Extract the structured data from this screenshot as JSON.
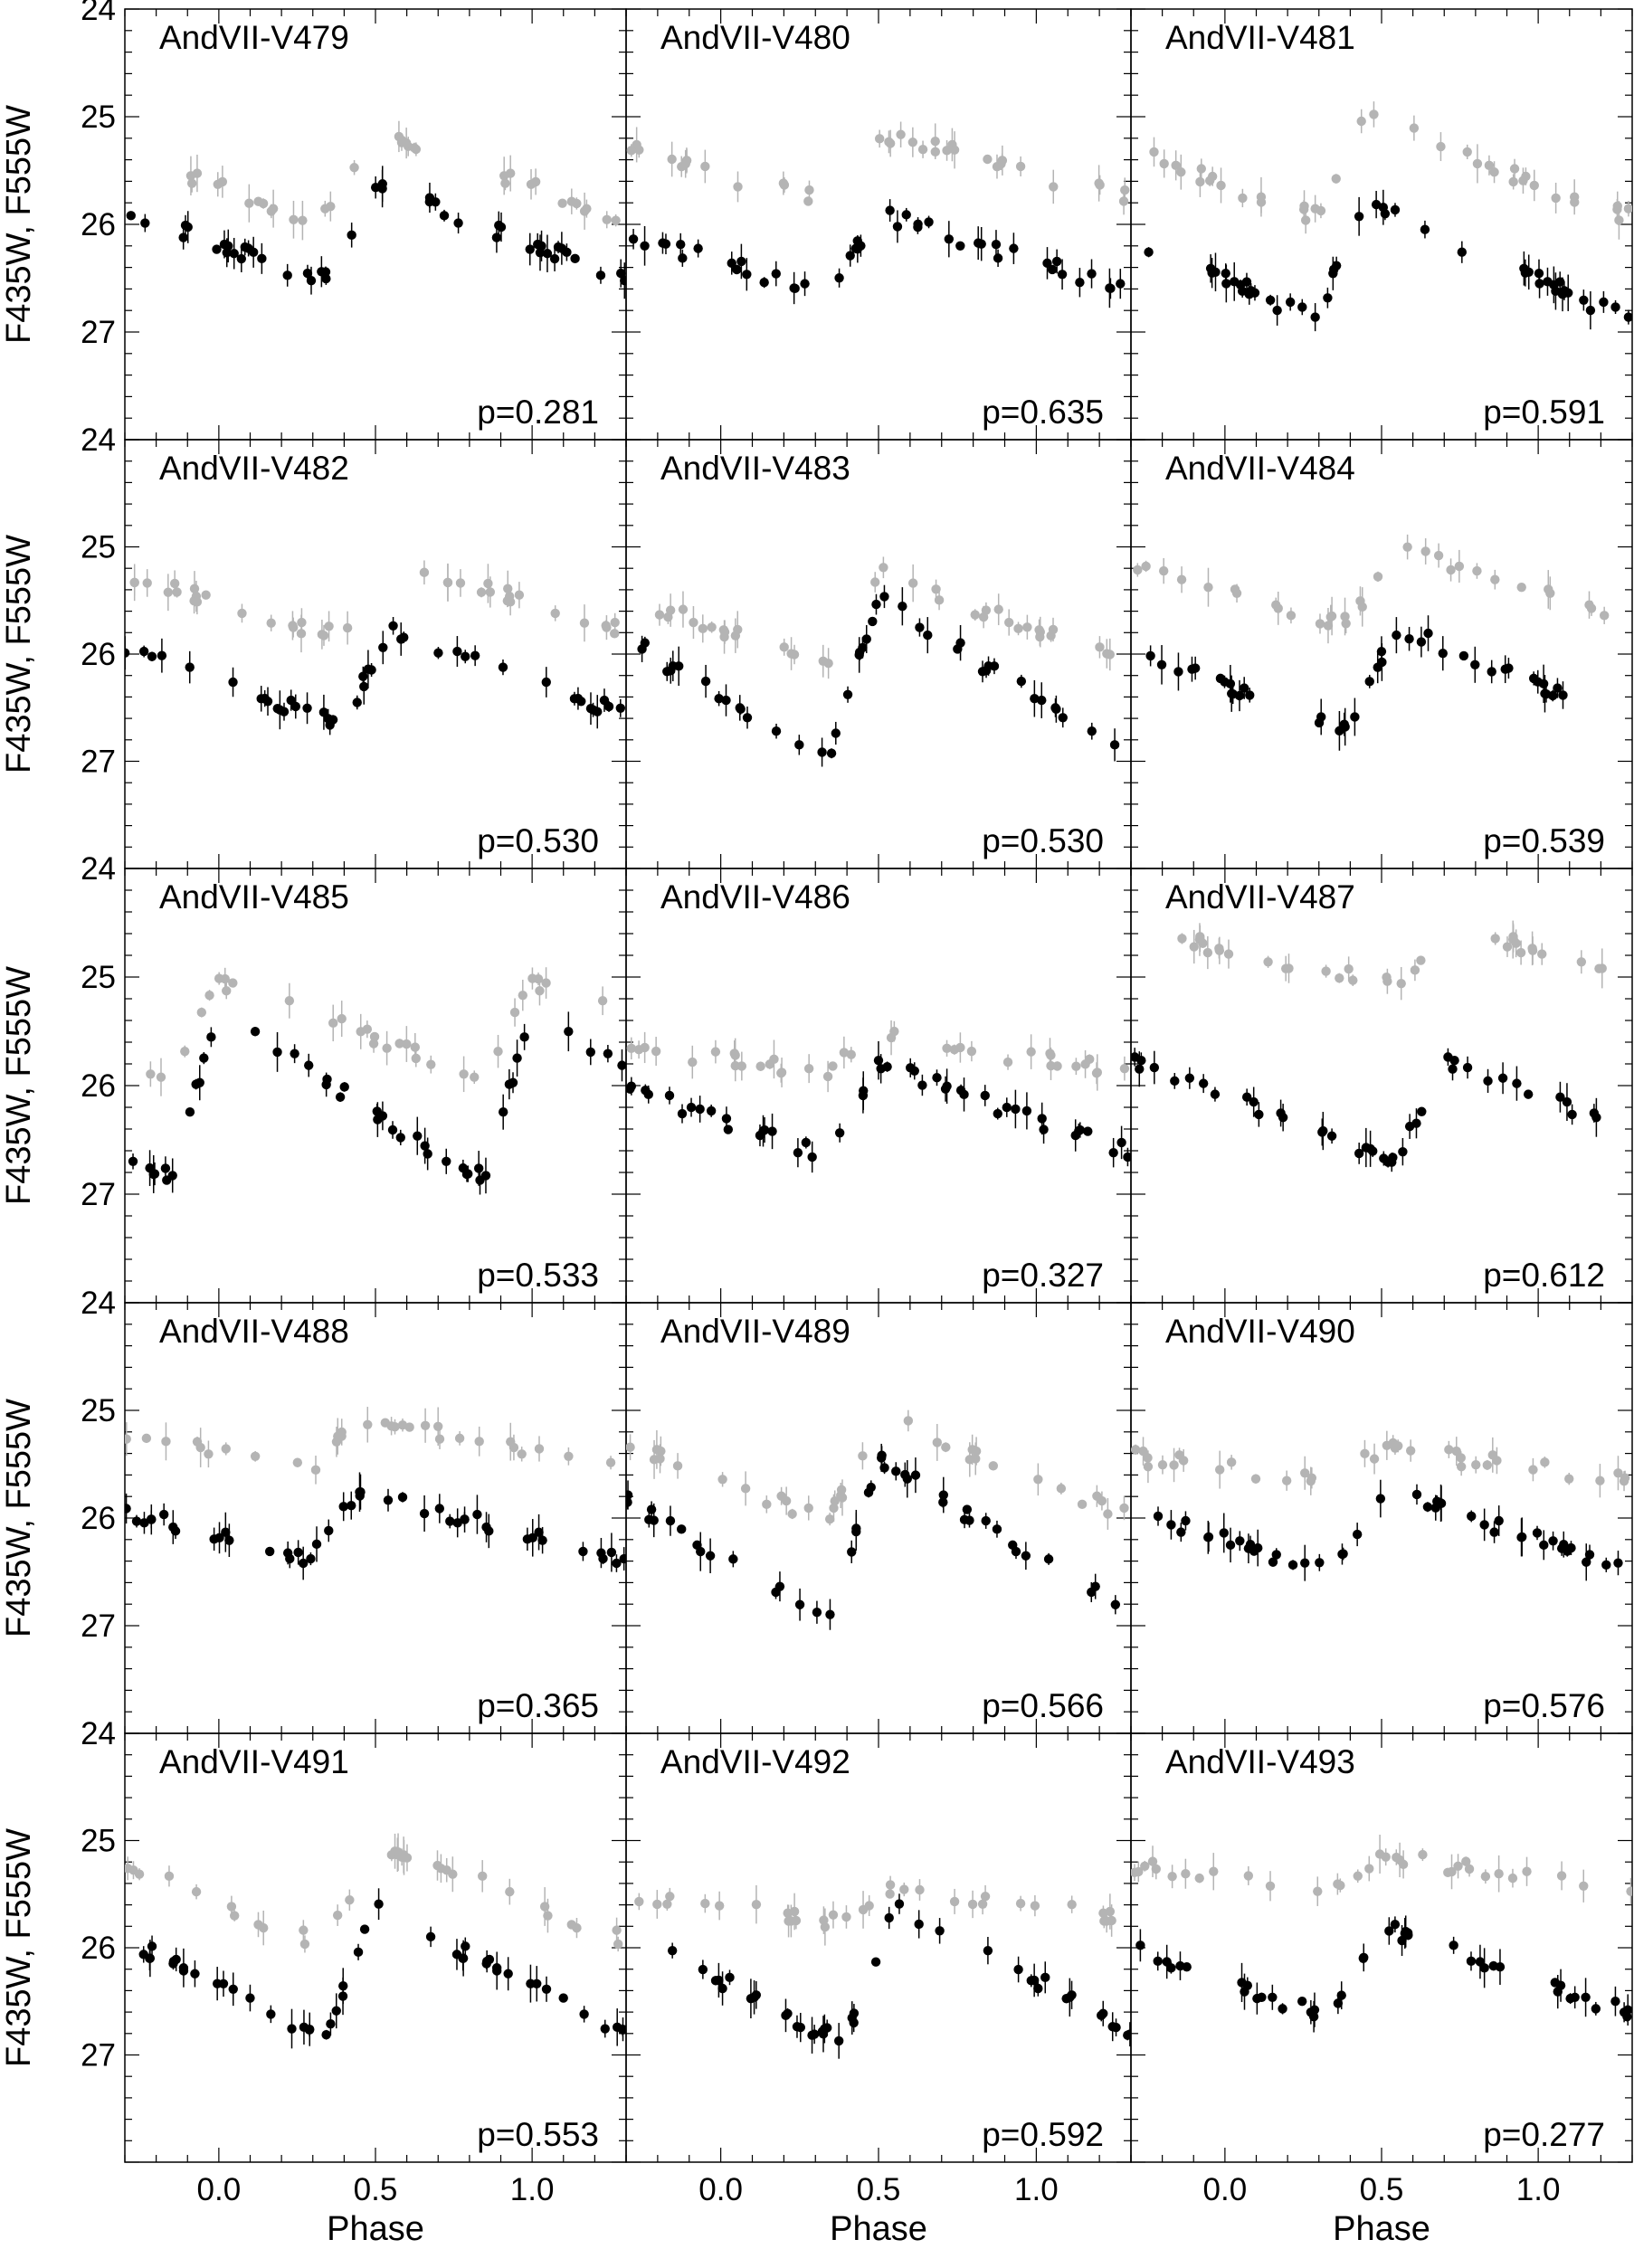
{
  "figure": {
    "ylabel": "F435W, F555W",
    "xlabel": "Phase"
  },
  "chart_data": {
    "type": "scatter",
    "xlim": [
      -0.3,
      1.3
    ],
    "ylim": [
      24,
      28
    ],
    "y_inverted": true,
    "x_ticks": [
      0.0,
      0.5,
      1.0
    ],
    "x_tick_labels": [
      "0.0",
      "0.5",
      "1.0"
    ],
    "y_ticks": [
      24,
      25,
      26,
      27
    ],
    "y_tick_labels": [
      "24",
      "25",
      "26",
      "27"
    ],
    "marker_colors": {
      "F435W": "#000000",
      "F555W": "#b4b4b4"
    },
    "panels": [
      {
        "title": "AndVII-V479",
        "period_label": "p=0.281",
        "F555W_mean": 25.55,
        "F555W_amp": 0.75,
        "F435W_mean": 26.05,
        "F435W_amp": 0.85,
        "peak_phase": 0.5
      },
      {
        "title": "AndVII-V480",
        "period_label": "p=0.635",
        "F555W_mean": 25.45,
        "F555W_amp": 0.6,
        "F435W_mean": 26.25,
        "F435W_amp": 0.7,
        "peak_phase": 0.5
      },
      {
        "title": "AndVII-V481",
        "period_label": "p=0.591",
        "F555W_mean": 25.45,
        "F555W_amp": 0.9,
        "F435W_mean": 26.3,
        "F435W_amp": 1.0,
        "peak_phase": 0.45
      },
      {
        "title": "AndVII-V482",
        "period_label": "p=0.530",
        "F555W_mean": 25.45,
        "F555W_amp": 0.7,
        "F435W_mean": 26.2,
        "F435W_amp": 0.8,
        "peak_phase": 0.55
      },
      {
        "title": "AndVII-V483",
        "period_label": "p=0.530",
        "F555W_mean": 25.65,
        "F555W_amp": 0.8,
        "F435W_mean": 26.2,
        "F435W_amp": 1.5,
        "peak_phase": 0.5
      },
      {
        "title": "AndVII-V484",
        "period_label": "p=0.539",
        "F555W_mean": 25.35,
        "F555W_amp": 0.7,
        "F435W_mean": 26.2,
        "F435W_amp": 0.9,
        "peak_phase": 0.55
      },
      {
        "title": "AndVII-V485",
        "period_label": "p=0.533",
        "F555W_mean": 25.45,
        "F555W_amp": 0.8,
        "F435W_mean": 26.05,
        "F435W_amp": 1.5,
        "peak_phase": 0.0
      },
      {
        "title": "AndVII-V486",
        "period_label": "p=0.327",
        "F555W_mean": 25.7,
        "F555W_amp": 0.3,
        "F435W_mean": 26.2,
        "F435W_amp": 0.8,
        "peak_phase": 0.5
      },
      {
        "title": "AndVII-V487",
        "period_label": "p=0.612",
        "F555W_mean": 24.8,
        "F555W_amp": 0.5,
        "F435W_mean": 26.2,
        "F435W_amp": 0.9,
        "peak_phase": 0.7
      },
      {
        "title": "AndVII-V488",
        "period_label": "p=0.365",
        "F555W_mean": 25.3,
        "F555W_amp": 0.5,
        "F435W_mean": 26.05,
        "F435W_amp": 0.6,
        "peak_phase": 0.45
      },
      {
        "title": "AndVII-V489",
        "period_label": "p=0.566",
        "F555W_mean": 25.5,
        "F555W_amp": 0.9,
        "F435W_mean": 26.15,
        "F435W_amp": 1.4,
        "peak_phase": 0.5
      },
      {
        "title": "AndVII-V490",
        "period_label": "p=0.576",
        "F555W_mean": 25.5,
        "F555W_amp": 0.3,
        "F435W_mean": 26.1,
        "F435W_amp": 0.7,
        "peak_phase": 0.5
      },
      {
        "title": "AndVII-V491",
        "period_label": "p=0.553",
        "F555W_mean": 25.45,
        "F555W_amp": 0.9,
        "F435W_mean": 26.2,
        "F435W_amp": 1.2,
        "peak_phase": 0.5
      },
      {
        "title": "AndVII-V492",
        "period_label": "p=0.592",
        "F555W_mean": 25.6,
        "F555W_amp": 0.3,
        "F435W_mean": 26.2,
        "F435W_amp": 1.2,
        "peak_phase": 0.55
      },
      {
        "title": "AndVII-V493",
        "period_label": "p=0.277",
        "F555W_mean": 25.3,
        "F555W_amp": 0.3,
        "F435W_mean": 26.2,
        "F435W_amp": 0.8,
        "peak_phase": 0.5
      }
    ]
  }
}
